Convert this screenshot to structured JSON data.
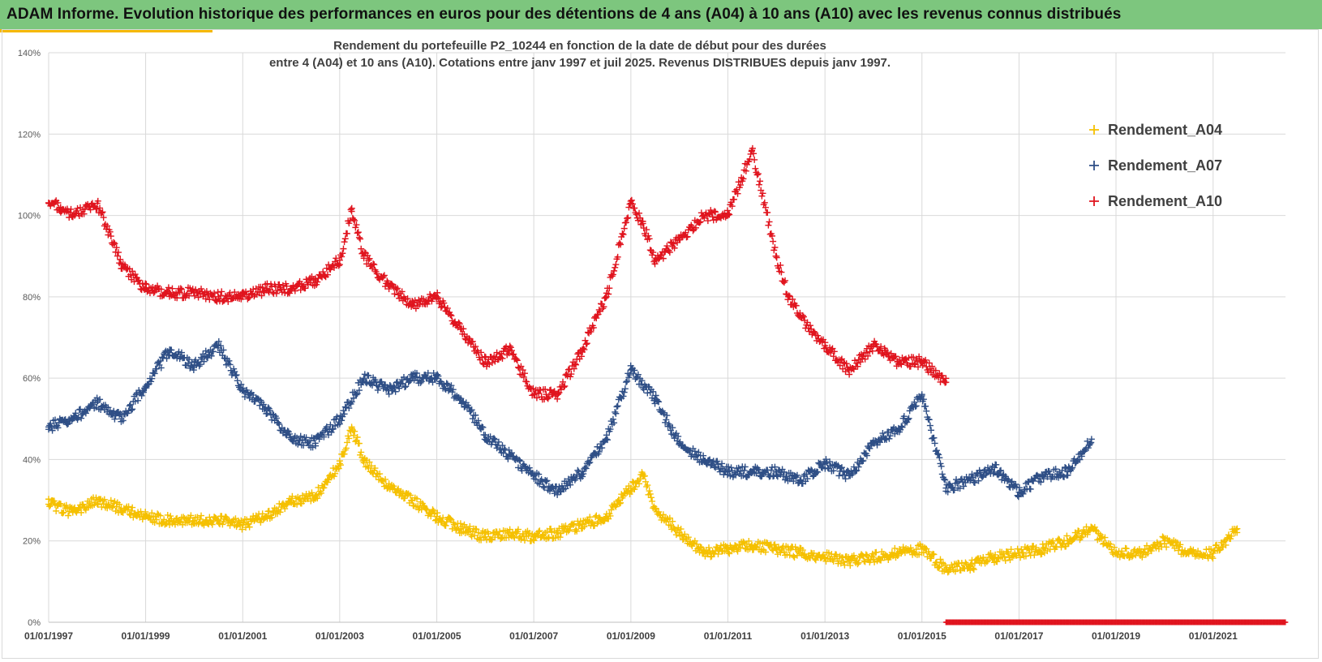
{
  "header": {
    "banner_title": "ADAM Informe. Evolution historique des performances en euros pour des détentions de 4 ans (A04) à 10 ans (A10) avec les revenus connus distribués"
  },
  "colors": {
    "banner": "#7dc67e",
    "accent": "#f5b800",
    "A04": "#f5c000",
    "A07": "#2f4f86",
    "A10": "#e0141e"
  },
  "chart_data": {
    "type": "scatter",
    "title_line1": "Rendement du portefeuille P2_10244 en fonction de la date de début pour des durées",
    "title_line2": "entre 4 (A04) et 10 ans (A10). Cotations entre janv 1997 et juil 2025. Revenus DISTRIBUES depuis janv 1997.",
    "xlabel": "",
    "ylabel": "",
    "xlim": [
      "1997-01-01",
      "2022-06-30"
    ],
    "ylim": [
      0,
      140
    ],
    "x_ticks": [
      "01/01/1997",
      "01/01/1999",
      "01/01/2001",
      "01/01/2003",
      "01/01/2005",
      "01/01/2007",
      "01/01/2009",
      "01/01/2011",
      "01/01/2013",
      "01/01/2015",
      "01/01/2017",
      "01/01/2019",
      "01/01/2021"
    ],
    "y_ticks": [
      "0%",
      "20%",
      "40%",
      "60%",
      "80%",
      "100%",
      "120%",
      "140%"
    ],
    "y_tick_values": [
      0,
      20,
      40,
      60,
      80,
      100,
      120,
      140
    ],
    "grid": true,
    "legend_position": "right",
    "marker": "+",
    "series": [
      {
        "name": "Rendement_A04",
        "x": [
          "1997-01-01",
          "1997-07-01",
          "1998-01-01",
          "1998-07-01",
          "1999-01-01",
          "1999-07-01",
          "2000-01-01",
          "2000-07-01",
          "2001-01-01",
          "2001-07-01",
          "2002-01-01",
          "2002-07-01",
          "2002-10-01",
          "2003-01-01",
          "2003-04-01",
          "2003-07-01",
          "2004-01-01",
          "2004-07-01",
          "2005-01-01",
          "2005-07-01",
          "2006-01-01",
          "2006-07-01",
          "2007-01-01",
          "2007-07-01",
          "2008-01-01",
          "2008-07-01",
          "2008-10-01",
          "2009-01-01",
          "2009-04-01",
          "2009-07-01",
          "2010-01-01",
          "2010-07-01",
          "2011-01-01",
          "2011-07-01",
          "2012-01-01",
          "2012-07-01",
          "2013-01-01",
          "2013-07-01",
          "2014-01-01",
          "2014-07-01",
          "2015-01-01",
          "2015-07-01",
          "2016-01-01",
          "2016-07-01",
          "2017-01-01",
          "2017-07-01",
          "2018-01-01",
          "2018-07-01",
          "2019-01-01",
          "2019-07-01",
          "2020-01-01",
          "2020-07-01",
          "2021-01-01",
          "2021-07-01"
        ],
        "y": [
          29,
          27,
          30,
          28,
          26,
          25,
          25,
          25,
          24,
          26,
          30,
          31,
          35,
          39,
          48,
          40,
          33,
          30,
          26,
          23,
          21,
          22,
          21,
          22,
          24,
          26,
          30,
          33,
          36,
          28,
          22,
          17,
          18,
          19,
          18,
          17,
          16,
          15,
          16,
          17,
          18,
          13,
          14,
          16,
          17,
          18,
          20,
          23,
          17,
          17,
          20,
          17,
          17,
          23
        ]
      },
      {
        "name": "Rendement_A07",
        "x": [
          "1997-01-01",
          "1997-07-01",
          "1998-01-01",
          "1998-07-01",
          "1999-01-01",
          "1999-07-01",
          "2000-01-01",
          "2000-07-01",
          "2001-01-01",
          "2001-07-01",
          "2002-01-01",
          "2002-07-01",
          "2003-01-01",
          "2003-07-01",
          "2004-01-01",
          "2004-07-01",
          "2005-01-01",
          "2005-07-01",
          "2006-01-01",
          "2006-07-01",
          "2007-01-01",
          "2007-07-01",
          "2008-01-01",
          "2008-07-01",
          "2009-01-01",
          "2009-07-01",
          "2010-01-01",
          "2010-07-01",
          "2011-01-01",
          "2011-07-01",
          "2012-01-01",
          "2012-07-01",
          "2013-01-01",
          "2013-07-01",
          "2014-01-01",
          "2014-07-01",
          "2015-01-01",
          "2015-07-01",
          "2016-01-01",
          "2016-07-01",
          "2017-01-01",
          "2017-07-01",
          "2018-01-01",
          "2018-07-01"
        ],
        "y": [
          48,
          50,
          54,
          50,
          58,
          67,
          63,
          68,
          57,
          52,
          45,
          44,
          50,
          60,
          57,
          60,
          60,
          55,
          46,
          41,
          36,
          32,
          37,
          45,
          62,
          55,
          44,
          40,
          37,
          37,
          37,
          35,
          39,
          36,
          44,
          47,
          56,
          33,
          35,
          38,
          32,
          36,
          37,
          45
        ]
      },
      {
        "name": "Rendement_A10",
        "x": [
          "1997-01-01",
          "1997-04-01",
          "1997-07-01",
          "1998-01-01",
          "1998-07-01",
          "1999-01-01",
          "1999-07-01",
          "2000-01-01",
          "2000-07-01",
          "2001-01-01",
          "2001-07-01",
          "2002-01-01",
          "2002-07-01",
          "2003-01-01",
          "2003-04-01",
          "2003-07-01",
          "2004-01-01",
          "2004-07-01",
          "2005-01-01",
          "2005-07-01",
          "2006-01-01",
          "2006-07-01",
          "2007-01-01",
          "2007-07-01",
          "2008-01-01",
          "2008-07-01",
          "2009-01-01",
          "2009-04-01",
          "2009-07-01",
          "2010-01-01",
          "2010-07-01",
          "2011-01-01",
          "2011-07-01",
          "2012-01-01",
          "2012-04-01",
          "2012-07-01",
          "2013-01-01",
          "2013-07-01",
          "2014-01-01",
          "2014-07-01",
          "2015-01-01",
          "2015-07-01"
        ],
        "y": [
          103,
          102,
          100,
          103,
          88,
          82,
          81,
          81,
          80,
          80,
          82,
          82,
          84,
          89,
          101,
          90,
          83,
          78,
          80,
          72,
          64,
          67,
          56,
          56,
          67,
          80,
          103,
          98,
          89,
          94,
          100,
          100,
          116,
          90,
          80,
          75,
          68,
          62,
          68,
          64,
          64,
          59
        ]
      },
      {
        "name": "",
        "x_start": "2015-07-01",
        "x_end": "2022-06-30",
        "y": 0
      }
    ]
  }
}
